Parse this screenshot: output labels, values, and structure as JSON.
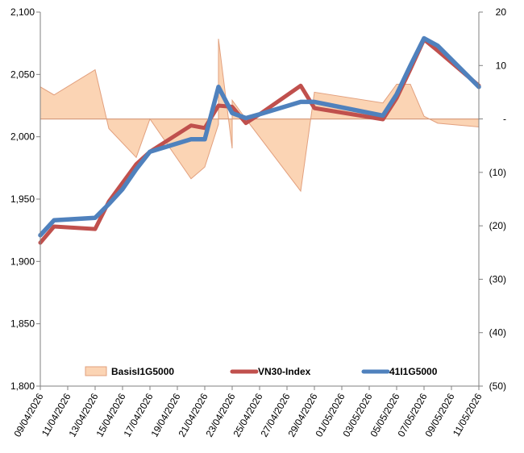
{
  "chart_data": {
    "type": "line",
    "x": [
      "09/04/2026",
      "10/04/2026",
      "13/04/2026",
      "14/04/2026",
      "15/04/2026",
      "16/04/2026",
      "17/04/2026",
      "20/04/2026",
      "21/04/2026",
      "22/04/2026",
      "23/04/2026",
      "24/04/2026",
      "25/04/2026",
      "28/04/2026",
      "29/04/2026",
      "04/05/2026",
      "05/05/2026",
      "06/05/2026",
      "07/05/2026",
      "08/05/2026",
      "11/05/2026"
    ],
    "x_tick_labels": [
      "09/04/2026",
      "11/04/2026",
      "13/04/2026",
      "15/04/2026",
      "17/04/2026",
      "19/04/2026",
      "21/04/2026",
      "23/04/2026",
      "25/04/2026",
      "27/04/2026",
      "29/04/2026",
      "01/05/2026",
      "03/05/2026",
      "05/05/2026",
      "07/05/2026",
      "09/05/2026",
      "11/05/2026"
    ],
    "basis_x": [
      "09/04/2026",
      "10/04/2026",
      "13/04/2026",
      "14/04/2026",
      "16/04/2026",
      "17/04/2026",
      "20/04/2026",
      "21/04/2026",
      "22/04/2026",
      "22/04/2026",
      "23/04/2026",
      "23/04/2026",
      "24/04/2026",
      "28/04/2026",
      "29/04/2026",
      "04/05/2026",
      "05/05/2026",
      "06/05/2026",
      "07/05/2026",
      "08/05/2026",
      "11/05/2026"
    ],
    "series": [
      {
        "name": "BasisI1G5000",
        "axis": "right",
        "kind": "area",
        "color": "#fbd4b4",
        "values": [
          6,
          4.5,
          9.2,
          -1.8,
          -7.2,
          0,
          -11.2,
          -9,
          -1,
          15,
          -5.5,
          3.5,
          0,
          -13.5,
          5,
          3,
          6.5,
          6.5,
          0.5,
          -0.8,
          -1.5
        ]
      },
      {
        "name": "VN30-Index",
        "axis": "left",
        "kind": "line",
        "color": "#c0504d",
        "values": [
          1915,
          1928,
          1926,
          1948,
          1963,
          1978,
          1988,
          2009,
          2007,
          2025,
          2024,
          2011,
          2018,
          2041,
          2023,
          2014,
          2031,
          2054,
          2078,
          2069,
          2041
        ]
      },
      {
        "name": "41I1G5000",
        "axis": "left",
        "kind": "line",
        "color": "#4f81bd",
        "values": [
          1921,
          1933,
          1935,
          1946,
          1958,
          1974,
          1988,
          1998,
          1998,
          2040,
          2019,
          2015,
          2018,
          2028,
          2028,
          2017,
          2034,
          2057,
          2079,
          2073,
          2040
        ]
      }
    ],
    "y_left": {
      "min": 1800,
      "max": 2100,
      "step": 50,
      "tick_labels": [
        "1,800",
        "1,850",
        "1,900",
        "1,950",
        "2,000",
        "2,050",
        "2,100"
      ]
    },
    "y_right": {
      "min": -50,
      "max": 20,
      "step": 10,
      "tick_labels": [
        "(50)",
        "(40)",
        "(30)",
        "(20)",
        "(10)",
        "-",
        "10",
        "20"
      ]
    },
    "legend": {
      "position": "bottom-inside",
      "entries": [
        {
          "label": "BasisI1G5000",
          "color": "#fbd4b4"
        },
        {
          "label": "VN30-Index",
          "color": "#c0504d"
        },
        {
          "label": "41I1G5000",
          "color": "#4f81bd"
        }
      ]
    },
    "grid": false
  }
}
